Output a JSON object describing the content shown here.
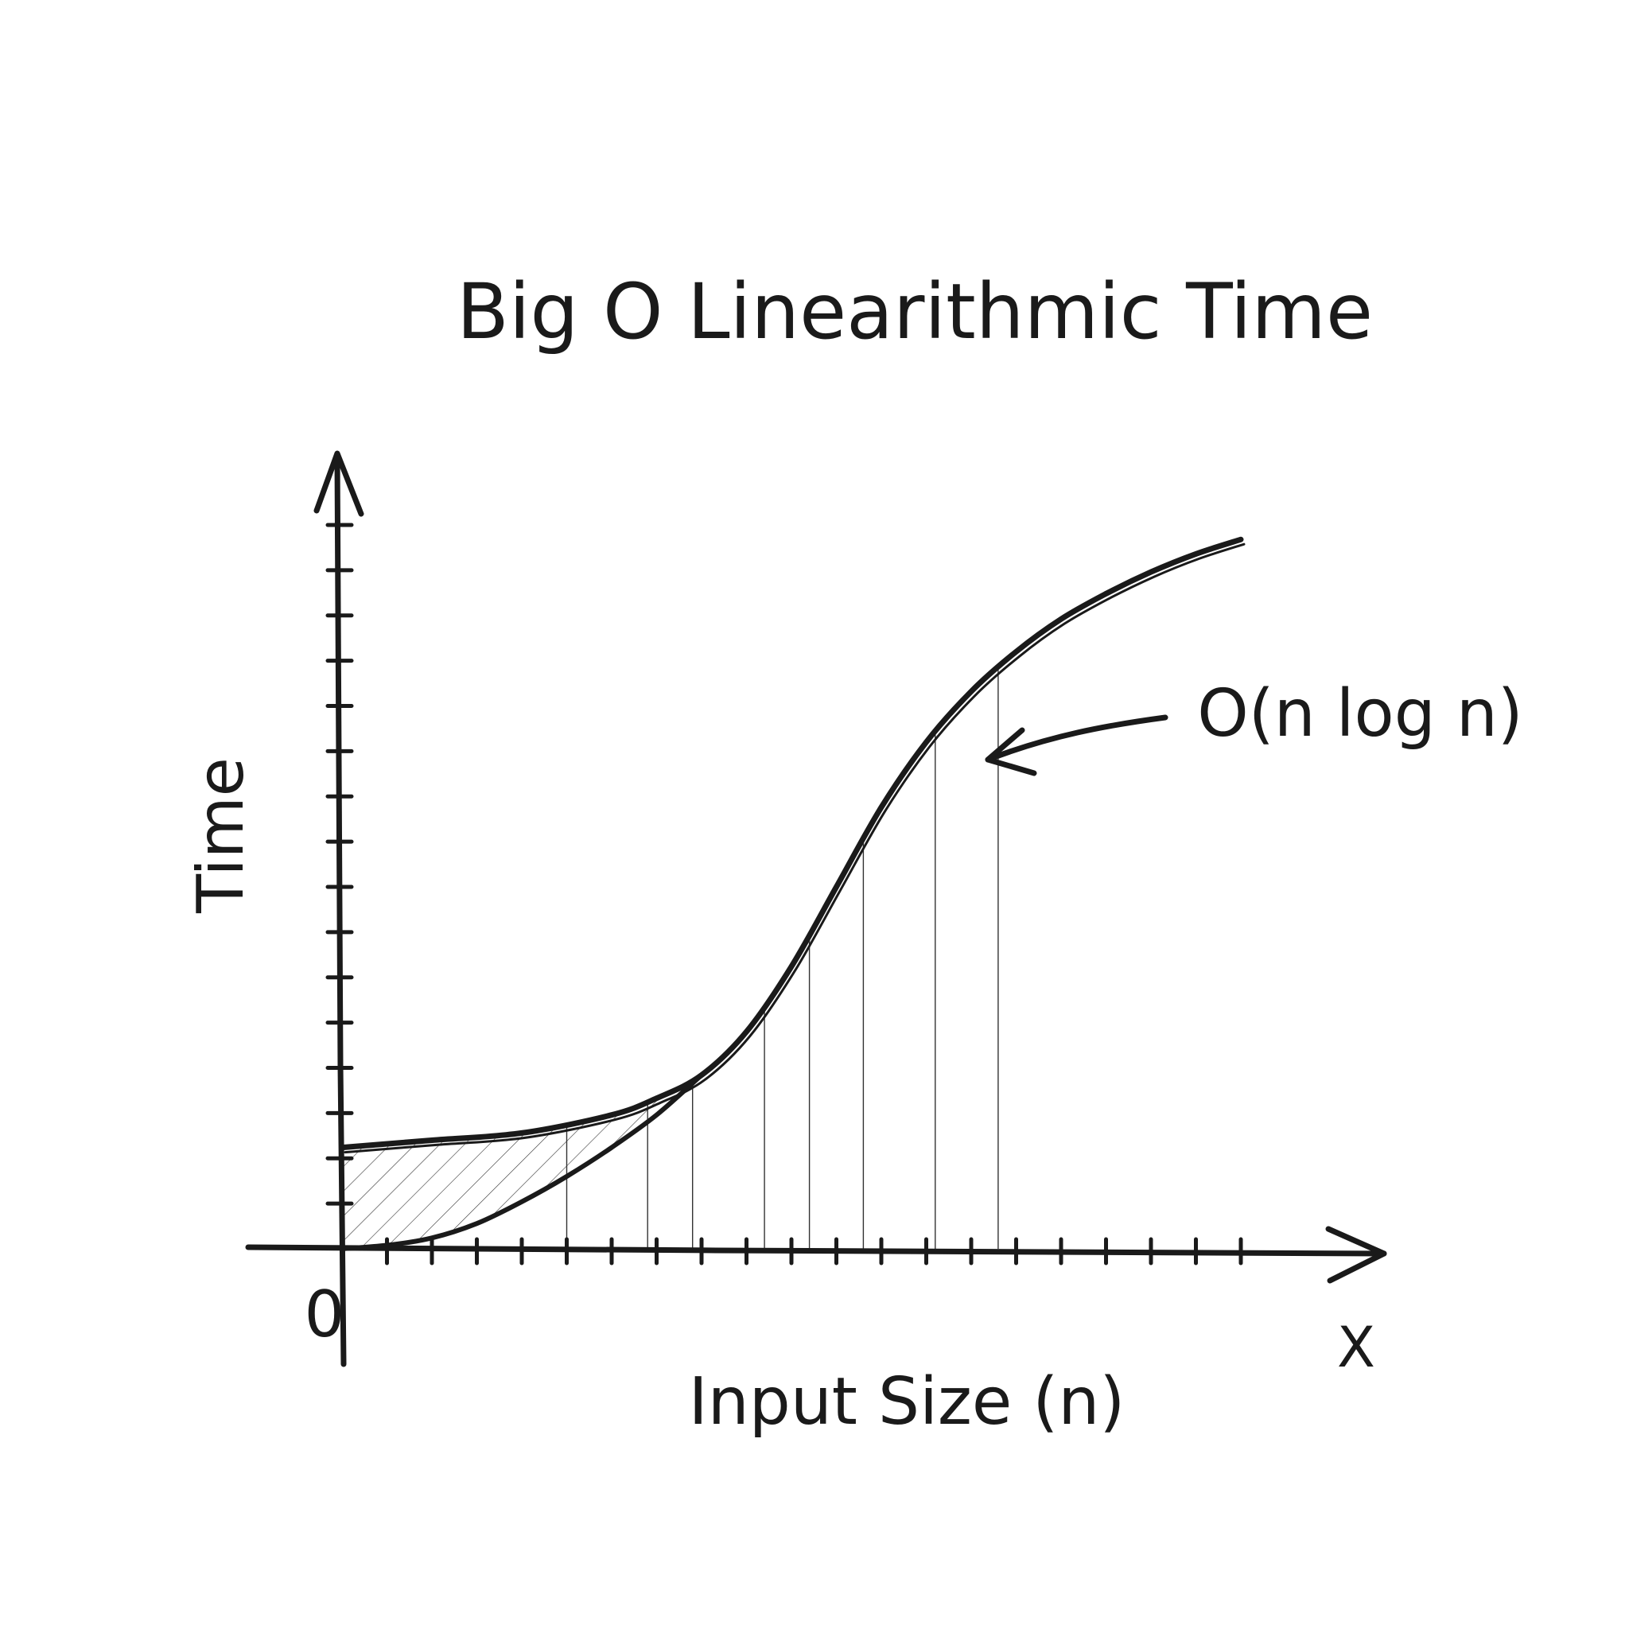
{
  "chart_data": {
    "type": "line",
    "title": "Big O Linearithmic Time",
    "xlabel": "Input Size (n)",
    "ylabel": "Time",
    "x_axis_end_label": "X",
    "origin_label": "0",
    "xlim": [
      0,
      100
    ],
    "ylim": [
      0,
      100
    ],
    "grid": false,
    "x_tick_count": 20,
    "y_tick_count": 16,
    "shaded_region": "hatched",
    "annotation": "O(n log n)",
    "series": [
      {
        "name": "O(n log n)",
        "x": [
          0,
          10,
          20,
          30,
          35,
          40,
          45,
          50,
          55,
          60,
          65,
          70,
          75,
          80,
          85,
          90,
          95,
          100
        ],
        "y": [
          14,
          15,
          16,
          18.5,
          20.8,
          24,
          30,
          39,
          50,
          61,
          70,
          77,
          82.5,
          87,
          90.5,
          93.5,
          96,
          98
        ]
      },
      {
        "x": [
          0,
          5,
          10,
          15,
          20,
          25,
          30,
          35,
          40
        ],
        "y": [
          0,
          0.5,
          1.5,
          3.5,
          6.5,
          10,
          14,
          18.5,
          24
        ]
      }
    ]
  }
}
